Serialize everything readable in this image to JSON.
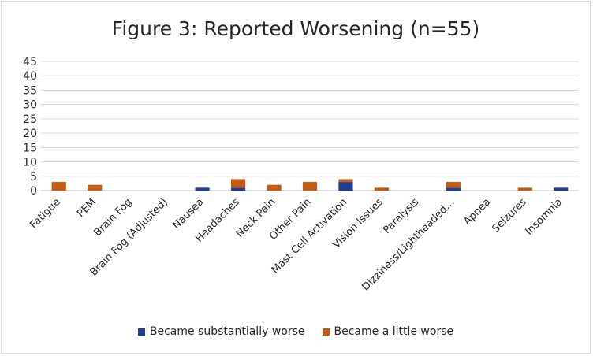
{
  "chart_data": {
    "type": "bar",
    "stacked": true,
    "title": "Figure 3: Reported Worsening (n=55)",
    "categories": [
      "Fatigue",
      "PEM",
      "Brain Fog",
      "Brain Fog (Adjusted)",
      "Nausea",
      "Headaches",
      "Neck Pain",
      "Other Pain",
      "Mast Cell Activation",
      "Vision Issues",
      "Paralysis",
      "Dizziness/Lightheaded…",
      "Apnea",
      "Seizures",
      "Insomnia"
    ],
    "series": [
      {
        "name": "Became substantially worse",
        "color": "#1f3f99",
        "values": [
          0,
          0,
          0,
          0,
          1,
          1,
          0,
          0,
          3,
          0,
          0,
          1,
          0,
          0,
          1
        ]
      },
      {
        "name": "Became a little worse",
        "color": "#c55a11",
        "values": [
          3,
          2,
          0,
          0,
          0,
          3,
          2,
          3,
          1,
          1,
          0,
          2,
          0,
          1,
          0
        ]
      }
    ],
    "ylim": [
      0,
      45
    ],
    "yticks": [
      0,
      5,
      10,
      15,
      20,
      25,
      30,
      35,
      40,
      45
    ],
    "grid": true,
    "legend": "bottom"
  }
}
